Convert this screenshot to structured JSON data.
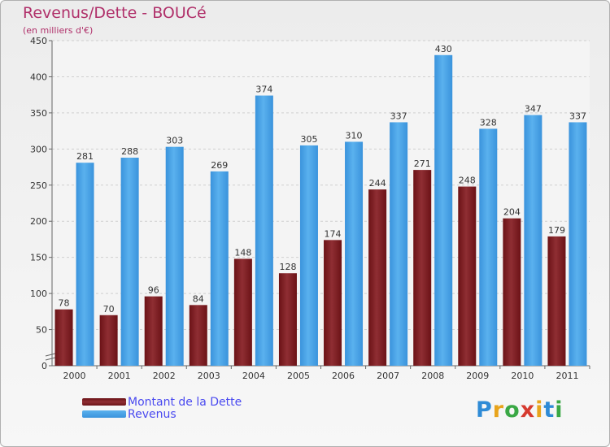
{
  "title": "Revenus/Dette - BOUCé",
  "subtitle": "(en milliers d'€)",
  "brand": {
    "text": "Proxiti",
    "letters": [
      "P",
      "r",
      "o",
      "x",
      "i",
      "t",
      "i"
    ],
    "colors": [
      "#2f8bd6",
      "#e8a41c",
      "#3aa845",
      "#d63a2f",
      "#e8a41c",
      "#2f8bd6",
      "#3aa845"
    ]
  },
  "colors": {
    "dette": "#6b1216",
    "dette_light": "#8f2e33",
    "revenus": "#3a93dc",
    "revenus_light": "#5ab1ee",
    "title": "#b0306a",
    "legend_text": "#4a4af0"
  },
  "chart_data": {
    "type": "bar",
    "title": "Revenus/Dette - BOUCé",
    "ylabel": "(en milliers d'€)",
    "xlabel": "",
    "ylim": [
      0,
      450
    ],
    "yticks": [
      0,
      50,
      100,
      150,
      200,
      250,
      300,
      350,
      400,
      450
    ],
    "grid": true,
    "categories": [
      "2000",
      "2001",
      "2002",
      "2003",
      "2004",
      "2005",
      "2006",
      "2007",
      "2008",
      "2009",
      "2010",
      "2011"
    ],
    "series": [
      {
        "name": "Montant de la Dette",
        "values": [
          78,
          70,
          96,
          84,
          148,
          128,
          174,
          244,
          271,
          248,
          204,
          179
        ]
      },
      {
        "name": "Revenus",
        "values": [
          281,
          288,
          303,
          269,
          374,
          305,
          310,
          337,
          430,
          328,
          347,
          337
        ]
      }
    ],
    "legend": "bottom-left"
  }
}
